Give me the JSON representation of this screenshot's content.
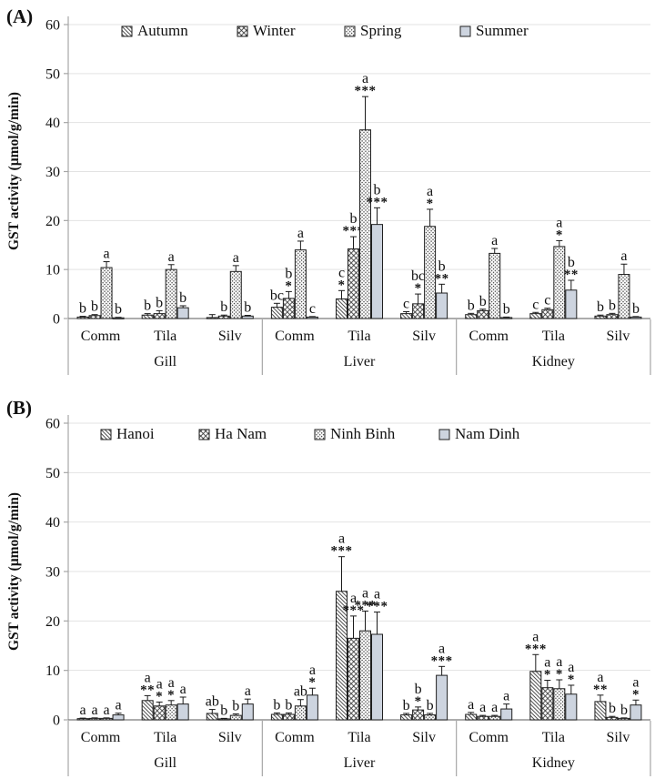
{
  "panels": [
    {
      "label": "(A)",
      "y_axis_title": "GST activity (µmol/g/min)"
    },
    {
      "label": "(B)",
      "y_axis_title": "GST activity (µmol/g/min)"
    }
  ],
  "colors": {
    "solid_fill": "#cdd4df",
    "bar_border": "#1f1f1f",
    "hatch_line": "#333333",
    "gridline": "#e3e3e3",
    "axis_line": "#a6a6a6",
    "baseline": "#7a7a7a",
    "text": "#111111"
  },
  "chart_data": [
    {
      "type": "bar",
      "panel": "A",
      "title": "",
      "xlabel": "",
      "ylabel": "GST activity (µmol/g/min)",
      "ylim": [
        0,
        60
      ],
      "yticks": [
        0,
        10,
        20,
        30,
        40,
        50,
        60
      ],
      "legend_position": "top",
      "grid": true,
      "series": [
        "Autumn",
        "Winter",
        "Spring",
        "Summer"
      ],
      "series_patterns": [
        "diagonal-hatch",
        "cross-hatch",
        "dot-fill",
        "solid-fill"
      ],
      "organs": [
        "Gill",
        "Liver",
        "Kidney"
      ],
      "species": [
        "Comm",
        "Tila",
        "Silv"
      ],
      "groups": [
        {
          "organ": "Gill",
          "species": "Comm",
          "bars": [
            {
              "value": 0.3,
              "err": 0.15,
              "letter": "b",
              "stars": ""
            },
            {
              "value": 0.6,
              "err": 0.2,
              "letter": "b",
              "stars": ""
            },
            {
              "value": 10.4,
              "err": 1.2,
              "letter": "a",
              "stars": ""
            },
            {
              "value": 0.15,
              "err": 0.1,
              "letter": "b",
              "stars": ""
            }
          ]
        },
        {
          "organ": "Gill",
          "species": "Tila",
          "bars": [
            {
              "value": 0.7,
              "err": 0.3,
              "letter": "b",
              "stars": ""
            },
            {
              "value": 1.0,
              "err": 0.6,
              "letter": "b",
              "stars": ""
            },
            {
              "value": 10.0,
              "err": 1.0,
              "letter": "a",
              "stars": ""
            },
            {
              "value": 2.2,
              "err": 0.4,
              "letter": "b",
              "stars": ""
            }
          ]
        },
        {
          "organ": "Gill",
          "species": "Silv",
          "bars": [
            {
              "value": 0.2,
              "err": 0.6,
              "letter": "",
              "stars": ""
            },
            {
              "value": 0.5,
              "err": 0.2,
              "letter": "b",
              "stars": ""
            },
            {
              "value": 9.6,
              "err": 1.2,
              "letter": "a",
              "stars": ""
            },
            {
              "value": 0.5,
              "err": 0.15,
              "letter": "b",
              "stars": ""
            }
          ]
        },
        {
          "organ": "Liver",
          "species": "Comm",
          "bars": [
            {
              "value": 2.3,
              "err": 0.8,
              "letter": "bc",
              "stars": ""
            },
            {
              "value": 4.1,
              "err": 1.4,
              "letter": "b",
              "stars": "*"
            },
            {
              "value": 14.0,
              "err": 1.8,
              "letter": "a",
              "stars": ""
            },
            {
              "value": 0.3,
              "err": 0.1,
              "letter": "c",
              "stars": ""
            }
          ]
        },
        {
          "organ": "Liver",
          "species": "Tila",
          "bars": [
            {
              "value": 4.0,
              "err": 1.7,
              "letter": "c",
              "stars": "*"
            },
            {
              "value": 14.2,
              "err": 2.5,
              "letter": "b",
              "stars": "***"
            },
            {
              "value": 38.5,
              "err": 6.8,
              "letter": "a",
              "stars": "***"
            },
            {
              "value": 19.2,
              "err": 3.4,
              "letter": "b",
              "stars": "***"
            }
          ]
        },
        {
          "organ": "Liver",
          "species": "Silv",
          "bars": [
            {
              "value": 1.0,
              "err": 0.4,
              "letter": "c",
              "stars": ""
            },
            {
              "value": 3.0,
              "err": 2.0,
              "letter": "bc",
              "stars": "*"
            },
            {
              "value": 18.8,
              "err": 3.5,
              "letter": "a",
              "stars": "*"
            },
            {
              "value": 5.2,
              "err": 1.8,
              "letter": "b",
              "stars": "**"
            }
          ]
        },
        {
          "organ": "Kidney",
          "species": "Comm",
          "bars": [
            {
              "value": 0.8,
              "err": 0.25,
              "letter": "b",
              "stars": ""
            },
            {
              "value": 1.6,
              "err": 0.3,
              "letter": "b",
              "stars": ""
            },
            {
              "value": 13.3,
              "err": 1.0,
              "letter": "a",
              "stars": ""
            },
            {
              "value": 0.2,
              "err": 0.1,
              "letter": "b",
              "stars": ""
            }
          ]
        },
        {
          "organ": "Kidney",
          "species": "Tila",
          "bars": [
            {
              "value": 1.0,
              "err": 0.25,
              "letter": "c",
              "stars": ""
            },
            {
              "value": 1.8,
              "err": 0.3,
              "letter": "c",
              "stars": ""
            },
            {
              "value": 14.7,
              "err": 1.2,
              "letter": "a",
              "stars": "*"
            },
            {
              "value": 5.8,
              "err": 2.0,
              "letter": "b",
              "stars": "**"
            }
          ]
        },
        {
          "organ": "Kidney",
          "species": "Silv",
          "bars": [
            {
              "value": 0.5,
              "err": 0.2,
              "letter": "b",
              "stars": ""
            },
            {
              "value": 0.8,
              "err": 0.25,
              "letter": "b",
              "stars": ""
            },
            {
              "value": 9.0,
              "err": 2.1,
              "letter": "a",
              "stars": ""
            },
            {
              "value": 0.3,
              "err": 0.1,
              "letter": "b",
              "stars": ""
            }
          ]
        }
      ]
    },
    {
      "type": "bar",
      "panel": "B",
      "title": "",
      "xlabel": "",
      "ylabel": "GST activity (µmol/g/min)",
      "ylim": [
        0,
        60
      ],
      "yticks": [
        0,
        10,
        20,
        30,
        40,
        50,
        60
      ],
      "legend_position": "top",
      "grid": true,
      "series": [
        "Hanoi",
        "Ha Nam",
        "Ninh Binh",
        "Nam Dinh"
      ],
      "series_patterns": [
        "diagonal-hatch",
        "cross-hatch",
        "dot-fill",
        "solid-fill"
      ],
      "organs": [
        "Gill",
        "Liver",
        "Kidney"
      ],
      "species": [
        "Comm",
        "Tila",
        "Silv"
      ],
      "groups": [
        {
          "organ": "Gill",
          "species": "Comm",
          "bars": [
            {
              "value": 0.25,
              "err": 0.1,
              "letter": "a",
              "stars": ""
            },
            {
              "value": 0.3,
              "err": 0.1,
              "letter": "a",
              "stars": ""
            },
            {
              "value": 0.3,
              "err": 0.1,
              "letter": "a",
              "stars": ""
            },
            {
              "value": 1.0,
              "err": 0.35,
              "letter": "a",
              "stars": ""
            }
          ]
        },
        {
          "organ": "Gill",
          "species": "Tila",
          "bars": [
            {
              "value": 3.9,
              "err": 1.0,
              "letter": "a",
              "stars": "**"
            },
            {
              "value": 2.8,
              "err": 0.8,
              "letter": "a",
              "stars": "*"
            },
            {
              "value": 3.0,
              "err": 0.9,
              "letter": "a",
              "stars": "*"
            },
            {
              "value": 3.2,
              "err": 1.4,
              "letter": "a",
              "stars": ""
            }
          ]
        },
        {
          "organ": "Gill",
          "species": "Silv",
          "bars": [
            {
              "value": 1.3,
              "err": 0.8,
              "letter": "ab",
              "stars": ""
            },
            {
              "value": 0.2,
              "err": 0.1,
              "letter": "b",
              "stars": ""
            },
            {
              "value": 0.9,
              "err": 0.3,
              "letter": "b",
              "stars": ""
            },
            {
              "value": 3.2,
              "err": 1.0,
              "letter": "a",
              "stars": ""
            }
          ]
        },
        {
          "organ": "Liver",
          "species": "Comm",
          "bars": [
            {
              "value": 1.1,
              "err": 0.3,
              "letter": "b",
              "stars": ""
            },
            {
              "value": 1.1,
              "err": 0.3,
              "letter": "b",
              "stars": ""
            },
            {
              "value": 2.8,
              "err": 1.3,
              "letter": "ab",
              "stars": ""
            },
            {
              "value": 5.0,
              "err": 1.4,
              "letter": "a",
              "stars": "*"
            }
          ]
        },
        {
          "organ": "Liver",
          "species": "Tila",
          "bars": [
            {
              "value": 26.0,
              "err": 7.0,
              "letter": "a",
              "stars": "***"
            },
            {
              "value": 16.5,
              "err": 4.5,
              "letter": "a",
              "stars": "***"
            },
            {
              "value": 18.0,
              "err": 4.0,
              "letter": "a",
              "stars": "***"
            },
            {
              "value": 17.3,
              "err": 4.5,
              "letter": "a",
              "stars": "***"
            }
          ]
        },
        {
          "organ": "Liver",
          "species": "Silv",
          "bars": [
            {
              "value": 1.0,
              "err": 0.3,
              "letter": "b",
              "stars": ""
            },
            {
              "value": 2.0,
              "err": 0.6,
              "letter": "b",
              "stars": "*"
            },
            {
              "value": 1.0,
              "err": 0.3,
              "letter": "b",
              "stars": ""
            },
            {
              "value": 9.0,
              "err": 1.8,
              "letter": "a",
              "stars": "***"
            }
          ]
        },
        {
          "organ": "Kidney",
          "species": "Comm",
          "bars": [
            {
              "value": 1.1,
              "err": 0.4,
              "letter": "a",
              "stars": ""
            },
            {
              "value": 0.7,
              "err": 0.2,
              "letter": "a",
              "stars": ""
            },
            {
              "value": 0.7,
              "err": 0.2,
              "letter": "a",
              "stars": ""
            },
            {
              "value": 2.2,
              "err": 1.0,
              "letter": "a",
              "stars": ""
            }
          ]
        },
        {
          "organ": "Kidney",
          "species": "Tila",
          "bars": [
            {
              "value": 9.8,
              "err": 3.4,
              "letter": "a",
              "stars": "***"
            },
            {
              "value": 6.5,
              "err": 1.5,
              "letter": "a",
              "stars": "*"
            },
            {
              "value": 6.3,
              "err": 1.8,
              "letter": "a",
              "stars": "*"
            },
            {
              "value": 5.2,
              "err": 1.8,
              "letter": "a",
              "stars": "*"
            }
          ]
        },
        {
          "organ": "Kidney",
          "species": "Silv",
          "bars": [
            {
              "value": 3.7,
              "err": 1.3,
              "letter": "a",
              "stars": "**"
            },
            {
              "value": 0.5,
              "err": 0.2,
              "letter": "b",
              "stars": ""
            },
            {
              "value": 0.3,
              "err": 0.1,
              "letter": "b",
              "stars": ""
            },
            {
              "value": 3.0,
              "err": 1.0,
              "letter": "a",
              "stars": "*"
            }
          ]
        }
      ]
    }
  ]
}
